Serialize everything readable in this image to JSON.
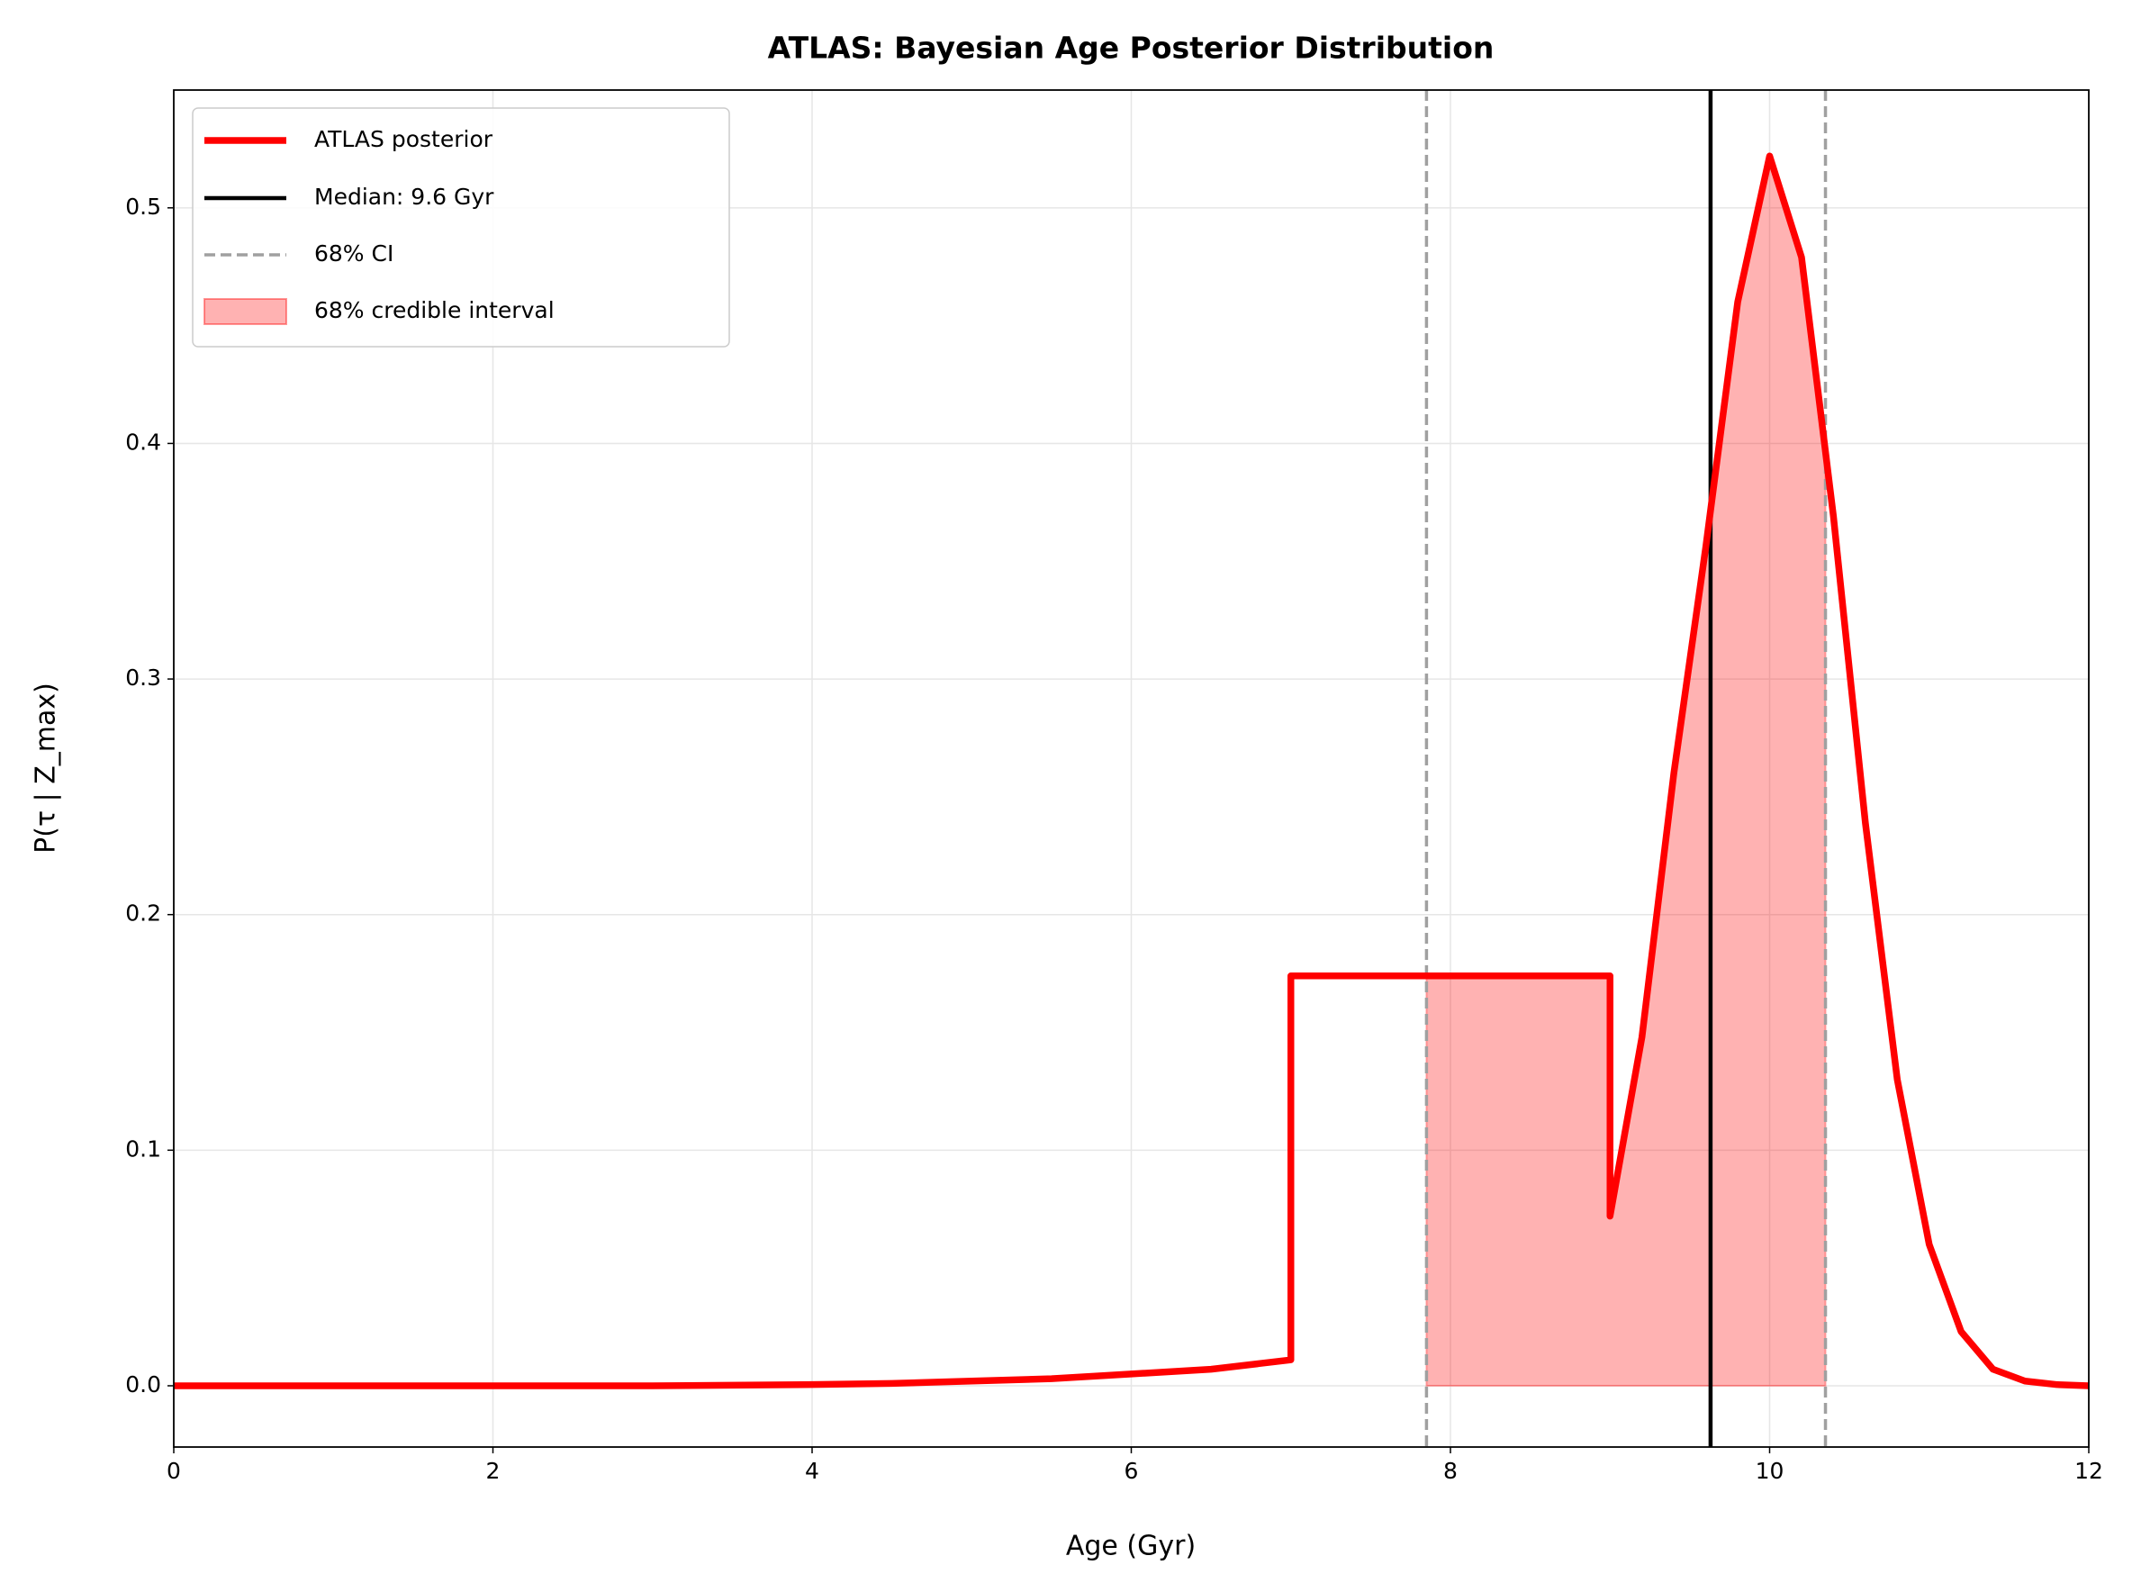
{
  "chart_data": {
    "type": "line",
    "title": "ATLAS: Bayesian Age Posterior Distribution",
    "xlabel": "Age (Gyr)",
    "ylabel": "P(τ | Z_max)",
    "xlim": [
      0,
      12
    ],
    "ylim": [
      -0.026,
      0.55
    ],
    "xticks": [
      0,
      2,
      4,
      6,
      8,
      10,
      12
    ],
    "yticks": [
      {
        "value": 0,
        "label": "0.0"
      },
      0.1,
      0.2,
      0.3,
      0.4,
      0.5
    ],
    "grid": true,
    "legend": "upper left",
    "series": [
      {
        "name": "ATLAS posterior",
        "color": "#ff0000",
        "x": [
          0,
          1,
          2,
          3,
          4,
          4.5,
          5,
          5.5,
          6,
          6.5,
          7,
          7,
          8,
          9,
          9,
          9.2,
          9.4,
          9.6,
          9.8,
          10,
          10.2,
          10.4,
          10.6,
          10.8,
          11,
          11.2,
          11.4,
          11.6,
          11.8,
          12
        ],
        "values": [
          0,
          0,
          0,
          0,
          0.0005,
          0.001,
          0.002,
          0.003,
          0.005,
          0.007,
          0.011,
          0.174,
          0.174,
          0.174,
          0.072,
          0.148,
          0.26,
          0.356,
          0.46,
          0.522,
          0.479,
          0.369,
          0.239,
          0.13,
          0.06,
          0.023,
          0.007,
          0.002,
          0.0005,
          0
        ]
      }
    ],
    "median": {
      "name": "Median: 9.6 Gyr",
      "color": "#000000",
      "x": 9.63
    },
    "ci": {
      "name": "68% CI",
      "color": "#a0a0a0",
      "x": [
        7.85,
        10.35
      ]
    },
    "ci_fill": {
      "name": "68% credible interval",
      "color": "#ff0000"
    }
  }
}
